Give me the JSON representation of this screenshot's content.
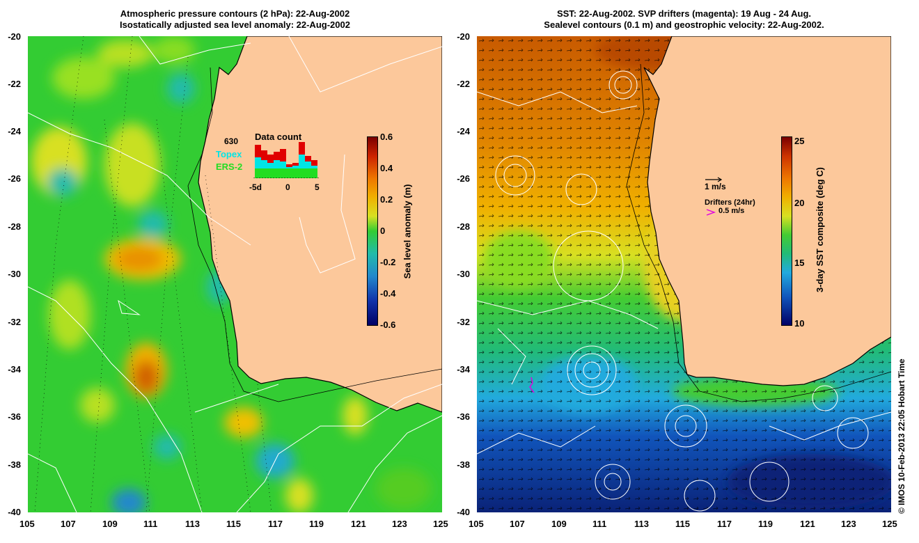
{
  "left_panel": {
    "title_line1": "Atmospheric pressure contours (2 hPa): 22-Aug-2002",
    "title_line2": "Isostatically adjusted sea level anomaly: 22-Aug-2002",
    "y_ticks": [
      "-20",
      "-22",
      "-24",
      "-26",
      "-28",
      "-30",
      "-32",
      "-34",
      "-36",
      "-38",
      "-40"
    ],
    "x_ticks": [
      "105",
      "107",
      "109",
      "111",
      "113",
      "115",
      "117",
      "119",
      "121",
      "123",
      "125"
    ],
    "colorbar_label": "Sea level anomaly (m)",
    "colorbar_ticks": [
      "0.6",
      "0.4",
      "0.2",
      "0",
      "-0.2",
      "-0.4",
      "-0.6"
    ],
    "data_count": {
      "title": "Data count",
      "count_value": "630",
      "topex_label": "Topex",
      "ers_label": "ERS-2",
      "x_ticks": [
        "-5d",
        "0",
        "5"
      ],
      "topex_color": "#00e5e5",
      "ers_color": "#22dd22",
      "total_color": "#e00000"
    }
  },
  "right_panel": {
    "title_line1": "SST: 22-Aug-2002. SVP drifters (magenta): 19 Aug - 24 Aug.",
    "title_line2": "Sealevel contours (0.1 m) and geostrophic velocity: 22-Aug-2002.",
    "y_ticks": [
      "-20",
      "-22",
      "-24",
      "-26",
      "-28",
      "-30",
      "-32",
      "-34",
      "-36",
      "-38",
      "-40"
    ],
    "x_ticks": [
      "105",
      "107",
      "109",
      "111",
      "113",
      "115",
      "117",
      "119",
      "121",
      "123",
      "125"
    ],
    "colorbar_label": "3-day SST composite (deg C)",
    "colorbar_ticks": [
      "25",
      "20",
      "15",
      "10"
    ],
    "velocity_legend": "1 m/s",
    "drifters_label": "Drifters (24hr)",
    "drifters_speed": "0.5 m/s",
    "drifter_color": "#e000e0"
  },
  "copyright": "© IMOS 10-Feb-2013 22:05 Hobart Time",
  "colors": {
    "land": "#fcc89b",
    "coast": "#000000"
  }
}
